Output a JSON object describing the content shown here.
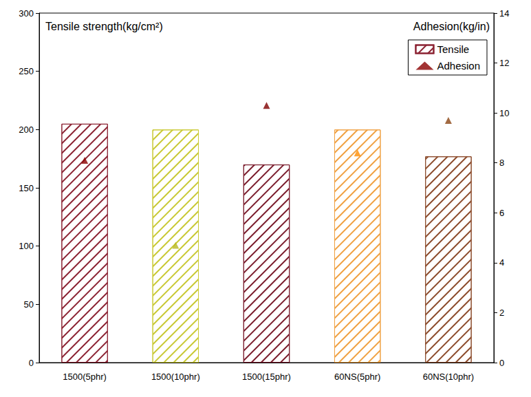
{
  "chart_data": {
    "type": "bar",
    "ylabel": "Tensile strength(kg/cm²)",
    "y2label": "Adhesion(kg/in)",
    "categories": [
      "1500(5phr)",
      "1500(10phr)",
      "1500(15phr)",
      "60NS(5phr)",
      "60NS(10phr)"
    ],
    "series": [
      {
        "name": "Tensile",
        "type": "bar",
        "values": [
          205,
          200,
          170,
          200,
          177
        ],
        "colors": [
          "#8b2232",
          "#c8c832",
          "#7a1c2c",
          "#f0a040",
          "#8b4a2a"
        ]
      },
      {
        "name": "Adhesion",
        "type": "scatter",
        "marker": "triangle",
        "axis": "y2",
        "values": [
          8.1,
          4.7,
          10.3,
          8.4,
          9.7
        ],
        "colors": [
          "#8b0000",
          "#b8b820",
          "#800000",
          "#ff8c00",
          "#8b4513"
        ]
      }
    ],
    "ylim": [
      0,
      300
    ],
    "yticks": [
      0,
      50,
      100,
      150,
      200,
      250,
      300
    ],
    "y2lim": [
      0,
      14
    ],
    "y2ticks": [
      0,
      2,
      4,
      6,
      8,
      10,
      12,
      14
    ],
    "legend": "upper right",
    "grid": false
  }
}
